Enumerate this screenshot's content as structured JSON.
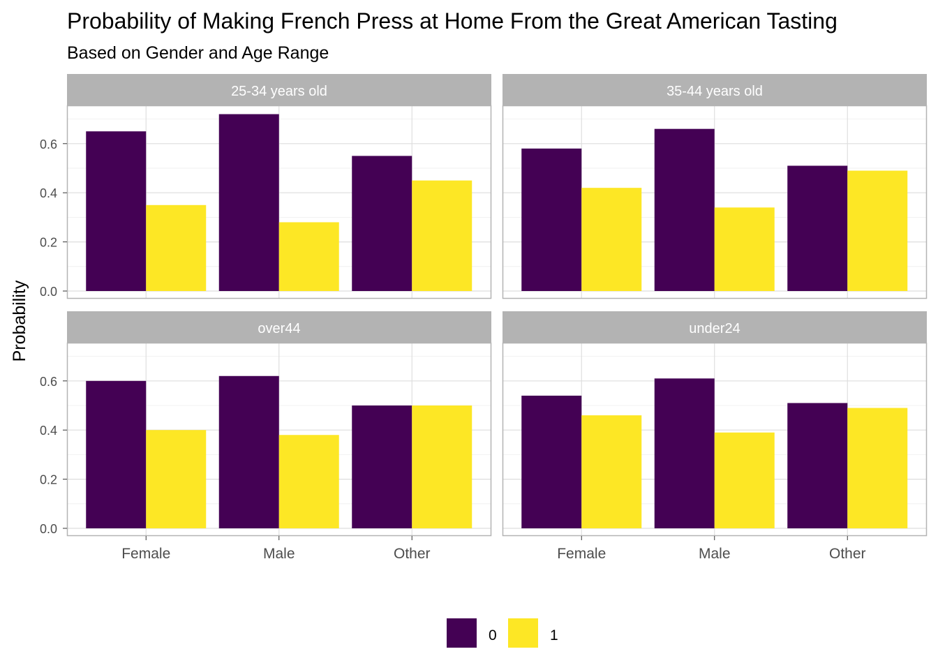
{
  "chart_data": {
    "type": "bar",
    "title": "Probability of Making French Press at Home From the Great American Tasting",
    "subtitle": "Based on Gender and Age Range",
    "xlabel": "",
    "ylabel": "Probability",
    "ylim": [
      0,
      0.76
    ],
    "yticks": [
      "0.0",
      "0.2",
      "0.4",
      "0.6"
    ],
    "ytick_values": [
      0,
      0.2,
      0.4,
      0.6
    ],
    "categories": [
      "Female",
      "Male",
      "Other"
    ],
    "legend_position": "bottom",
    "grid": true,
    "series_colors": [
      "#440154",
      "#FDE725"
    ],
    "legend": [
      "0",
      "1"
    ],
    "facets": [
      {
        "label": "25-34 years old",
        "series": [
          {
            "values": [
              0.65,
              0.72,
              0.55
            ]
          },
          {
            "values": [
              0.35,
              0.28,
              0.45
            ]
          }
        ]
      },
      {
        "label": "35-44 years old",
        "series": [
          {
            "values": [
              0.58,
              0.66,
              0.51
            ]
          },
          {
            "values": [
              0.42,
              0.34,
              0.49
            ]
          }
        ]
      },
      {
        "label": "over44",
        "series": [
          {
            "values": [
              0.6,
              0.62,
              0.5
            ]
          },
          {
            "values": [
              0.4,
              0.38,
              0.5
            ]
          }
        ]
      },
      {
        "label": "under24",
        "series": [
          {
            "values": [
              0.54,
              0.61,
              0.51
            ]
          },
          {
            "values": [
              0.46,
              0.39,
              0.49
            ]
          }
        ]
      }
    ]
  }
}
